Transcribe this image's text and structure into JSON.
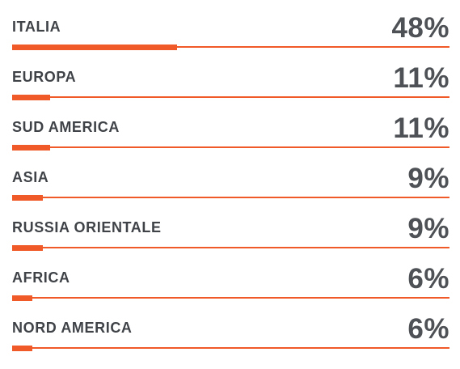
{
  "chart_data": {
    "type": "bar",
    "orientation": "horizontal",
    "categories": [
      "ITALIA",
      "EUROPA",
      "SUD AMERICA",
      "ASIA",
      "RUSSIA ORIENTALE",
      "AFRICA",
      "NORD AMERICA"
    ],
    "values": [
      48,
      11,
      11,
      9,
      9,
      6,
      6
    ],
    "value_labels": [
      "48%",
      "11%",
      "11%",
      "9%",
      "9%",
      "6%",
      "6%"
    ],
    "xlim": [
      0,
      100
    ],
    "title": "",
    "xlabel": "",
    "ylabel": "",
    "grid": false,
    "legend": "none"
  },
  "colors": {
    "accent": "#f05a28",
    "label_text": "#3f4348",
    "value_text": "#4e5155"
  }
}
